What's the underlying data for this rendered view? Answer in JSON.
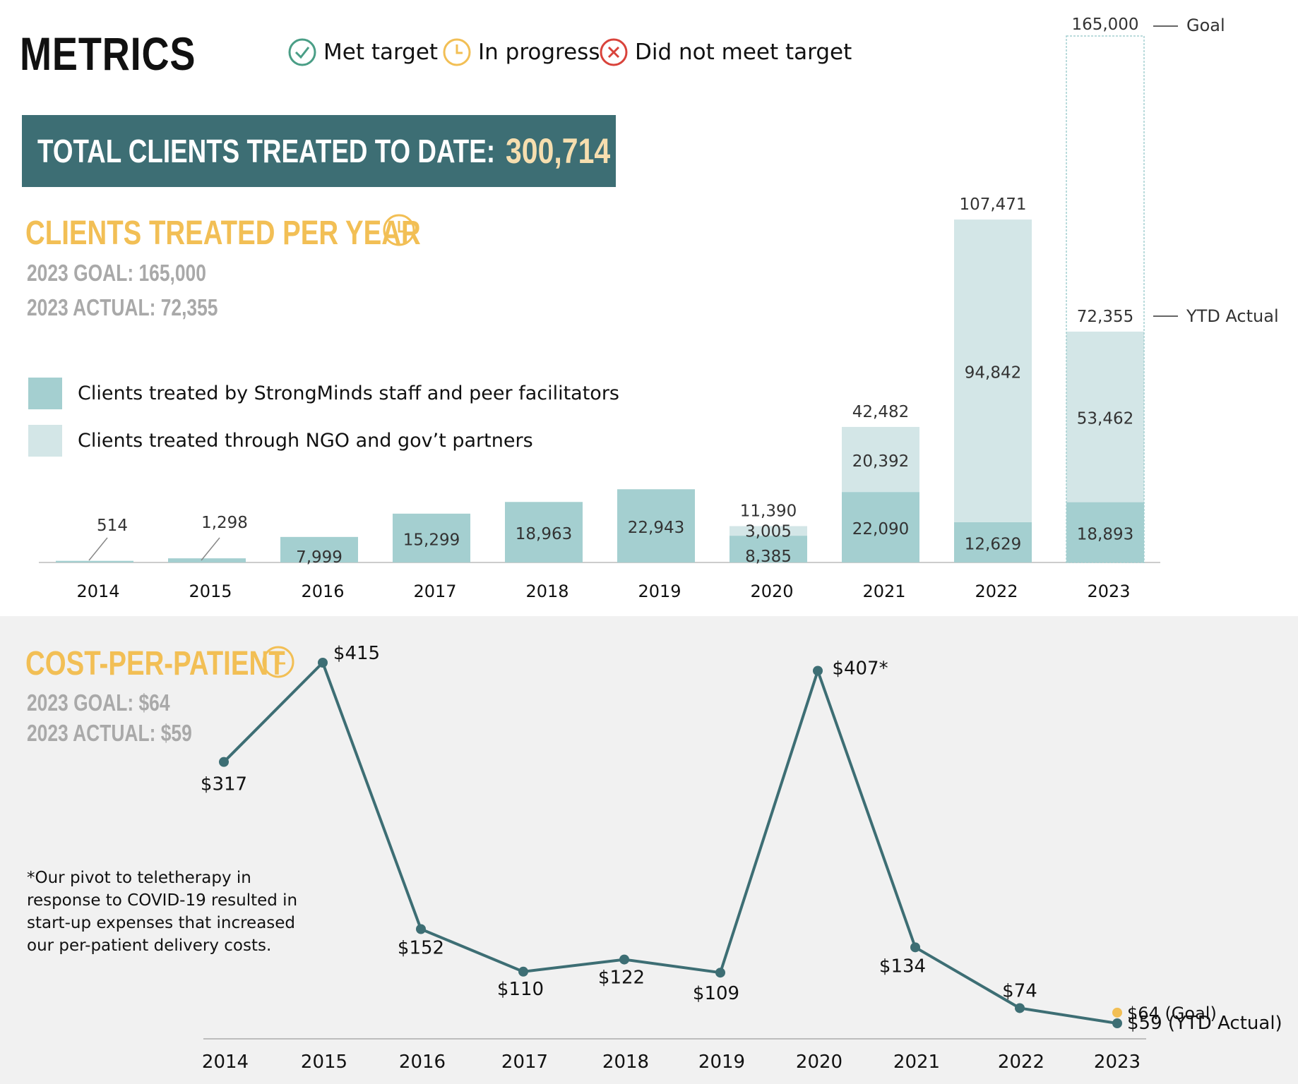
{
  "header": {
    "title": "METRICS"
  },
  "status_legend": [
    {
      "label": "Met target",
      "icon": "check-circle-icon",
      "color": "#4a9e86"
    },
    {
      "label": "In progress",
      "icon": "clock-circle-icon",
      "color": "#f2bf55"
    },
    {
      "label": "Did not meet target",
      "icon": "x-circle-icon",
      "color": "#d9433b"
    }
  ],
  "total_banner": {
    "label": "TOTAL CLIENTS TREATED TO DATE:",
    "value": "300,714"
  },
  "clients_section": {
    "title": "CLIENTS TREATED PER YEAR",
    "status_icon": "clock-circle-icon",
    "goal_text": "2023 GOAL: 165,000",
    "actual_text": "2023 ACTUAL: 72,355",
    "legend": [
      {
        "label": "Clients treated by StrongMinds staff and peer facilitators",
        "color": "#a4cfd0"
      },
      {
        "label": "Clients treated through NGO and gov’t partners",
        "color": "#d3e6e7"
      }
    ]
  },
  "cost_section": {
    "title": "COST-PER-PATIENT",
    "status_icon": "clock-circle-icon",
    "goal_text": "2023 GOAL:  $64",
    "actual_text": "2023 ACTUAL: $59",
    "footnote": "*Our pivot to teletherapy in response to COVID-19 resulted in start-up expenses that increased our per-patient delivery costs."
  },
  "colors": {
    "staff": "#a4cfd0",
    "partners": "#d3e6e7",
    "line": "#3d6e74",
    "accent": "#f2bf55",
    "banner": "#3d6e74",
    "banner_value": "#f6deaf"
  },
  "chart_data": [
    {
      "type": "bar",
      "stacked": true,
      "categories": [
        "2014",
        "2015",
        "2016",
        "2017",
        "2018",
        "2019",
        "2020",
        "2021",
        "2022",
        "2023"
      ],
      "series": [
        {
          "name": "Clients treated by StrongMinds staff and peer facilitators",
          "values": [
            514,
            1298,
            7999,
            15299,
            18963,
            22943,
            8385,
            22090,
            12629,
            18893
          ]
        },
        {
          "name": "Clients treated through NGO and gov’t partners",
          "values": [
            0,
            0,
            0,
            0,
            0,
            0,
            3005,
            20392,
            94842,
            53462
          ]
        }
      ],
      "segment_labels": {
        "staff": [
          "",
          "",
          "7,999",
          "15,299",
          "18,963",
          "22,943",
          "8,385",
          "22,090",
          "12,629",
          "18,893"
        ],
        "partners": [
          "",
          "",
          "",
          "",
          "",
          "",
          "3,005",
          "20,392",
          "94,842",
          "53,462"
        ]
      },
      "total_labels": [
        "514",
        "1,298",
        "",
        "",
        "",
        "",
        "11,390",
        "42,482",
        "107,471",
        "72,355"
      ],
      "goal": {
        "category": "2023",
        "value": 165000,
        "label": "165,000",
        "annotation": "Goal"
      },
      "ytd_annotation": "YTD Actual",
      "ylim": [
        0,
        165000
      ],
      "grid": false
    },
    {
      "type": "line",
      "x": [
        "2014",
        "2015",
        "2016",
        "2017",
        "2018",
        "2019",
        "2020",
        "2021",
        "2022",
        "2023"
      ],
      "series": [
        {
          "name": "Cost-per-patient",
          "values": [
            317,
            415,
            152,
            110,
            122,
            109,
            407,
            134,
            74,
            59
          ],
          "labels": [
            "$317",
            "$415",
            "$152",
            "$110",
            "$122",
            "$109",
            "$407*",
            "$134",
            "$74",
            "$59 (YTD Actual)"
          ]
        }
      ],
      "goal": {
        "x": "2023",
        "value": 64,
        "label": "$64 (Goal)"
      },
      "ylim": [
        59,
        415
      ],
      "grid": false
    }
  ]
}
